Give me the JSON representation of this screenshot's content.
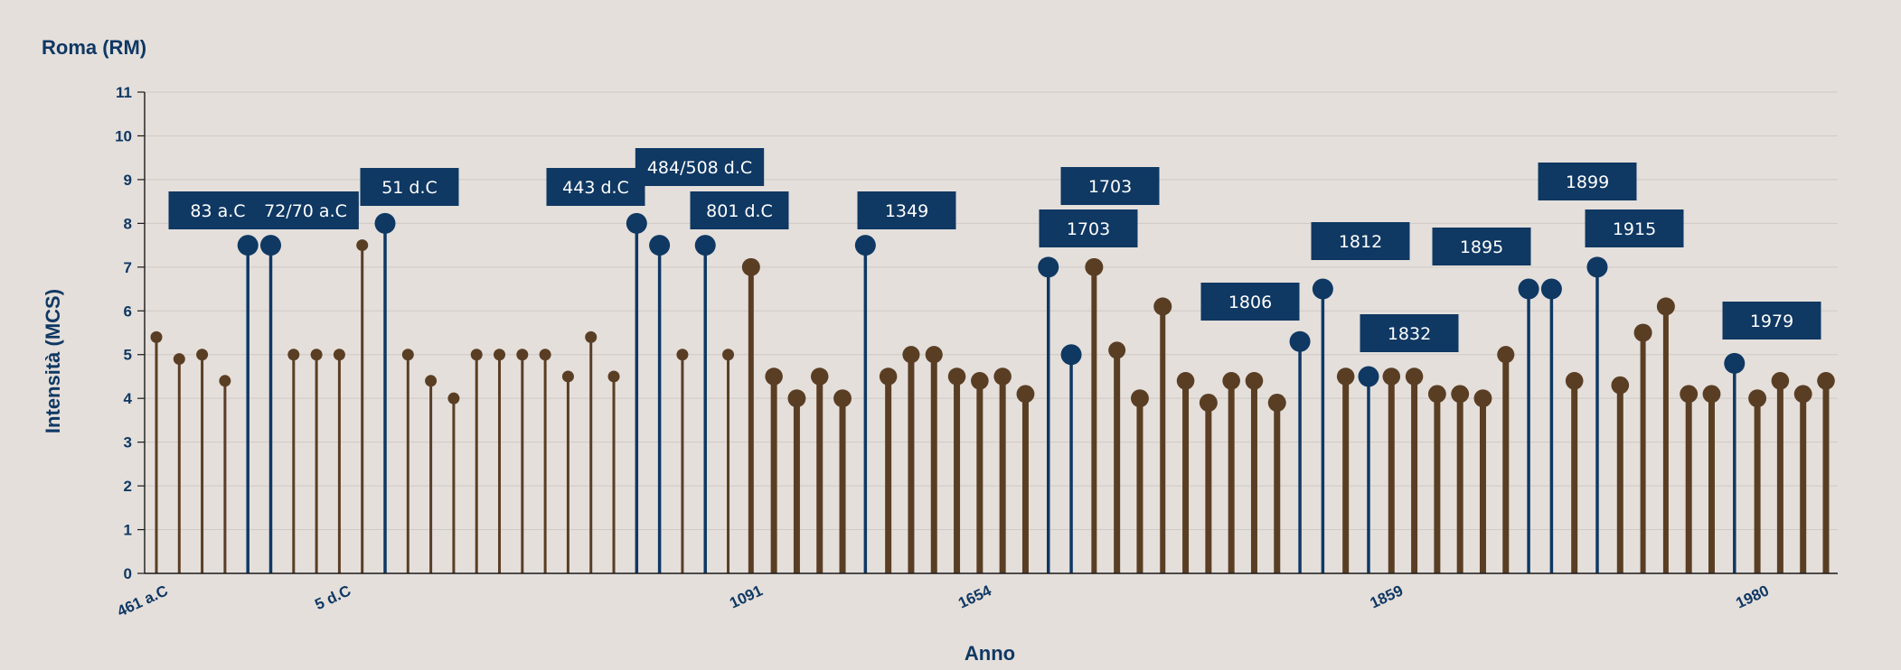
{
  "chart_data": {
    "type": "lollipop",
    "title": "Roma (RM)",
    "xlabel": "Anno",
    "ylabel": "Intensità (MCS)",
    "ylim": [
      0,
      11
    ],
    "yticks": [
      0,
      1,
      2,
      3,
      4,
      5,
      6,
      7,
      8,
      9,
      10,
      11
    ],
    "grid": true,
    "colors": {
      "default": "#5a3e24",
      "highlighted": "#0f3863",
      "label_bg": "#0f3863"
    },
    "xtick_labels": [
      {
        "index": 0,
        "label": "461 a.C"
      },
      {
        "index": 8,
        "label": "5 d.C"
      },
      {
        "index": 26,
        "label": "1091"
      },
      {
        "index": 36,
        "label": "1654"
      },
      {
        "index": 54,
        "label": "1859"
      },
      {
        "index": 70,
        "label": "1980"
      }
    ],
    "events": [
      {
        "value": 5.4,
        "highlight": false
      },
      {
        "value": 4.9,
        "highlight": false
      },
      {
        "value": 5.0,
        "highlight": false
      },
      {
        "value": 4.4,
        "highlight": false
      },
      {
        "value": 7.5,
        "highlight": true,
        "label": "83 a.C"
      },
      {
        "value": 7.5,
        "highlight": true,
        "label": "72/70 a.C"
      },
      {
        "value": 5.0,
        "highlight": false
      },
      {
        "value": 5.0,
        "highlight": false
      },
      {
        "value": 5.0,
        "highlight": false
      },
      {
        "value": 7.5,
        "highlight": false
      },
      {
        "value": 8.0,
        "highlight": true,
        "label": "51 d.C"
      },
      {
        "value": 5.0,
        "highlight": false
      },
      {
        "value": 4.4,
        "highlight": false
      },
      {
        "value": 4.0,
        "highlight": false
      },
      {
        "value": 5.0,
        "highlight": false
      },
      {
        "value": 5.0,
        "highlight": false
      },
      {
        "value": 5.0,
        "highlight": false
      },
      {
        "value": 5.0,
        "highlight": false
      },
      {
        "value": 4.5,
        "highlight": false
      },
      {
        "value": 5.4,
        "highlight": false
      },
      {
        "value": 4.5,
        "highlight": false
      },
      {
        "value": 8.0,
        "highlight": true,
        "label": "443 d.C"
      },
      {
        "value": 7.5,
        "highlight": true,
        "label": "484/508 d.C"
      },
      {
        "value": 5.0,
        "highlight": false
      },
      {
        "value": 7.5,
        "highlight": true,
        "label": "801 d.C"
      },
      {
        "value": 5.0,
        "highlight": false
      },
      {
        "value": 7.0,
        "highlight": false
      },
      {
        "value": 4.5,
        "highlight": false
      },
      {
        "value": 4.0,
        "highlight": false
      },
      {
        "value": 4.5,
        "highlight": false
      },
      {
        "value": 4.0,
        "highlight": false
      },
      {
        "value": 7.5,
        "highlight": true,
        "label": "1349"
      },
      {
        "value": 4.5,
        "highlight": false
      },
      {
        "value": 5.0,
        "highlight": false
      },
      {
        "value": 5.0,
        "highlight": false
      },
      {
        "value": 4.5,
        "highlight": false
      },
      {
        "value": 4.4,
        "highlight": false
      },
      {
        "value": 4.5,
        "highlight": false
      },
      {
        "value": 4.1,
        "highlight": false
      },
      {
        "value": 7.0,
        "highlight": true,
        "label": "1703"
      },
      {
        "value": 5.0,
        "highlight": true,
        "label": "1703"
      },
      {
        "value": 7.0,
        "highlight": false
      },
      {
        "value": 5.1,
        "highlight": false
      },
      {
        "value": 4.0,
        "highlight": false
      },
      {
        "value": 6.1,
        "highlight": false
      },
      {
        "value": 4.4,
        "highlight": false
      },
      {
        "value": 3.9,
        "highlight": false
      },
      {
        "value": 4.4,
        "highlight": false
      },
      {
        "value": 4.4,
        "highlight": false
      },
      {
        "value": 3.9,
        "highlight": false
      },
      {
        "value": 5.3,
        "highlight": true,
        "label": "1806"
      },
      {
        "value": 6.5,
        "highlight": true,
        "label": "1812"
      },
      {
        "value": 4.5,
        "highlight": false
      },
      {
        "value": 4.5,
        "highlight": true,
        "label": "1832"
      },
      {
        "value": 4.5,
        "highlight": false
      },
      {
        "value": 4.5,
        "highlight": false
      },
      {
        "value": 4.1,
        "highlight": false
      },
      {
        "value": 4.1,
        "highlight": false
      },
      {
        "value": 4.0,
        "highlight": false
      },
      {
        "value": 5.0,
        "highlight": false
      },
      {
        "value": 6.5,
        "highlight": true,
        "label": "1895"
      },
      {
        "value": 6.5,
        "highlight": true,
        "label": "1899"
      },
      {
        "value": 4.4,
        "highlight": false
      },
      {
        "value": 7.0,
        "highlight": true,
        "label": "1915"
      },
      {
        "value": 4.3,
        "highlight": false
      },
      {
        "value": 5.5,
        "highlight": false
      },
      {
        "value": 6.1,
        "highlight": false
      },
      {
        "value": 4.1,
        "highlight": false
      },
      {
        "value": 4.1,
        "highlight": false
      },
      {
        "value": 4.8,
        "highlight": true,
        "label": "1979"
      },
      {
        "value": 4.0,
        "highlight": false
      },
      {
        "value": 4.4,
        "highlight": false
      },
      {
        "value": 4.1,
        "highlight": false
      },
      {
        "value": 4.4,
        "highlight": false
      }
    ]
  }
}
